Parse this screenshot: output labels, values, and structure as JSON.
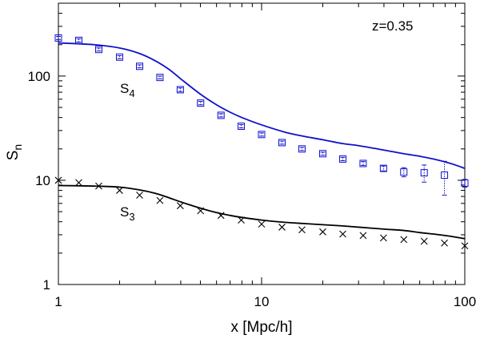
{
  "chart_data": {
    "type": "line",
    "title": "",
    "xlabel": "x [Mpc/h]",
    "ylabel_main": "S",
    "ylabel_sub": "n",
    "annotation": "z=0.35",
    "x_scale": "log",
    "y_scale": "log",
    "xlim": [
      1,
      100
    ],
    "ylim": [
      1,
      500
    ],
    "x_ticks": [
      {
        "value": 1,
        "label": "1"
      },
      {
        "value": 10,
        "label": "10"
      },
      {
        "value": 100,
        "label": "100"
      }
    ],
    "y_ticks": [
      {
        "value": 1,
        "label": "1"
      },
      {
        "value": 10,
        "label": "10"
      },
      {
        "value": 100,
        "label": "100"
      }
    ],
    "grid": false,
    "series": [
      {
        "label_main": "S",
        "label_sub": "4",
        "kind": "model",
        "color": "#1010cc",
        "points": [
          [
            1,
            208
          ],
          [
            1.5,
            200
          ],
          [
            2,
            186
          ],
          [
            2.5,
            165
          ],
          [
            3,
            140
          ],
          [
            3.5,
            116
          ],
          [
            4,
            94
          ],
          [
            5,
            67
          ],
          [
            6,
            53
          ],
          [
            7,
            45
          ],
          [
            8,
            40
          ],
          [
            10,
            34
          ],
          [
            13,
            29
          ],
          [
            16,
            26.5
          ],
          [
            20,
            24.5
          ],
          [
            25,
            22.5
          ],
          [
            30,
            21.5
          ],
          [
            40,
            19.5
          ],
          [
            50,
            18
          ],
          [
            60,
            17
          ],
          [
            70,
            16
          ],
          [
            80,
            15
          ],
          [
            90,
            14
          ],
          [
            100,
            13
          ]
        ]
      },
      {
        "label_main": "S",
        "label_sub": "4",
        "kind": "data",
        "marker": "square",
        "color": "#1010cc",
        "points": [
          {
            "x": 1.0,
            "y": 232,
            "err": 8
          },
          {
            "x": 1.26,
            "y": 220,
            "err": 8
          },
          {
            "x": 1.58,
            "y": 180,
            "err": 6
          },
          {
            "x": 2.0,
            "y": 152,
            "err": 5
          },
          {
            "x": 2.51,
            "y": 124,
            "err": 4
          },
          {
            "x": 3.16,
            "y": 97,
            "err": 3
          },
          {
            "x": 3.98,
            "y": 74,
            "err": 3
          },
          {
            "x": 5.01,
            "y": 55,
            "err": 2
          },
          {
            "x": 6.31,
            "y": 42,
            "err": 1.5
          },
          {
            "x": 7.94,
            "y": 33,
            "err": 1.2
          },
          {
            "x": 10.0,
            "y": 27.5,
            "err": 1
          },
          {
            "x": 12.6,
            "y": 23,
            "err": 0.8
          },
          {
            "x": 15.8,
            "y": 20,
            "err": 0.7
          },
          {
            "x": 20.0,
            "y": 18,
            "err": 0.6
          },
          {
            "x": 25.1,
            "y": 16,
            "err": 0.6
          },
          {
            "x": 31.6,
            "y": 14.5,
            "err": 0.6
          },
          {
            "x": 39.8,
            "y": 13,
            "err": 0.7
          },
          {
            "x": 50.1,
            "y": 12,
            "err": 1.2
          },
          {
            "x": 63.1,
            "y": 11.8,
            "err": 2.2
          },
          {
            "x": 79.4,
            "y": 11.2,
            "err": 4
          },
          {
            "x": 100.0,
            "y": 9.4,
            "err": 0.8
          }
        ]
      },
      {
        "label_main": "S",
        "label_sub": "3",
        "kind": "model",
        "color": "#000000",
        "points": [
          [
            1,
            8.9
          ],
          [
            1.5,
            8.8
          ],
          [
            2,
            8.6
          ],
          [
            2.5,
            8.1
          ],
          [
            3,
            7.5
          ],
          [
            3.5,
            6.8
          ],
          [
            4,
            6.2
          ],
          [
            5,
            5.4
          ],
          [
            6,
            4.9
          ],
          [
            7,
            4.6
          ],
          [
            8,
            4.4
          ],
          [
            10,
            4.15
          ],
          [
            13,
            3.95
          ],
          [
            16,
            3.85
          ],
          [
            20,
            3.75
          ],
          [
            25,
            3.65
          ],
          [
            30,
            3.55
          ],
          [
            40,
            3.4
          ],
          [
            50,
            3.3
          ],
          [
            60,
            3.15
          ],
          [
            70,
            3.05
          ],
          [
            80,
            2.95
          ],
          [
            90,
            2.85
          ],
          [
            100,
            2.75
          ]
        ]
      },
      {
        "label_main": "S",
        "label_sub": "3",
        "kind": "data",
        "marker": "cross",
        "color": "#000000",
        "points": [
          {
            "x": 1.0,
            "y": 10.0
          },
          {
            "x": 1.26,
            "y": 9.5
          },
          {
            "x": 1.58,
            "y": 8.8
          },
          {
            "x": 2.0,
            "y": 8.0
          },
          {
            "x": 2.51,
            "y": 7.2
          },
          {
            "x": 3.16,
            "y": 6.4
          },
          {
            "x": 3.98,
            "y": 5.7
          },
          {
            "x": 5.01,
            "y": 5.1
          },
          {
            "x": 6.31,
            "y": 4.6
          },
          {
            "x": 7.94,
            "y": 4.15
          },
          {
            "x": 10.0,
            "y": 3.8
          },
          {
            "x": 12.6,
            "y": 3.55
          },
          {
            "x": 15.8,
            "y": 3.35
          },
          {
            "x": 20.0,
            "y": 3.2
          },
          {
            "x": 25.1,
            "y": 3.05
          },
          {
            "x": 31.6,
            "y": 2.95
          },
          {
            "x": 39.8,
            "y": 2.8
          },
          {
            "x": 50.1,
            "y": 2.7
          },
          {
            "x": 63.1,
            "y": 2.6
          },
          {
            "x": 79.4,
            "y": 2.5
          },
          {
            "x": 100.0,
            "y": 2.35
          }
        ]
      }
    ]
  }
}
